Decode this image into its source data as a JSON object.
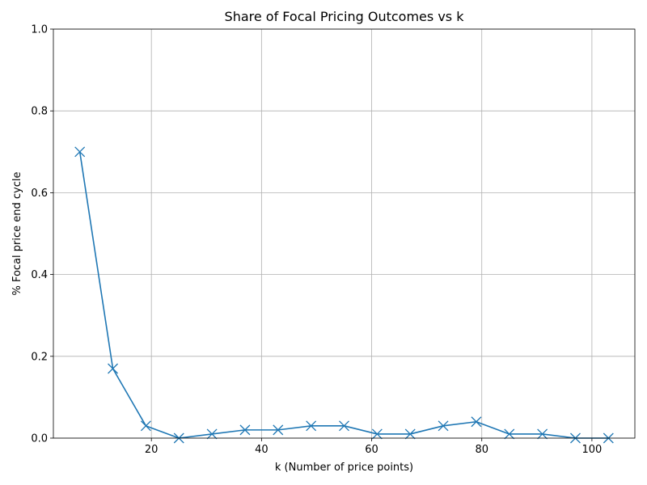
{
  "chart_data": {
    "type": "line",
    "title": "Share of Focal Pricing Outcomes vs k",
    "xlabel": "k (Number of price points)",
    "ylabel": "% Focal price end cycle",
    "xlim": [
      2.2,
      107.8
    ],
    "ylim": [
      0,
      1.0
    ],
    "xticks": [
      20,
      40,
      60,
      80,
      100
    ],
    "yticks": [
      0.0,
      0.2,
      0.4,
      0.6,
      0.8,
      1.0
    ],
    "grid": true,
    "marker": "x",
    "series": [
      {
        "color": "#1f77b4",
        "x": [
          7,
          13,
          19,
          25,
          31,
          37,
          43,
          49,
          55,
          61,
          67,
          73,
          79,
          85,
          91,
          97,
          103
        ],
        "y": [
          0.7,
          0.17,
          0.03,
          0.0,
          0.01,
          0.02,
          0.02,
          0.03,
          0.03,
          0.01,
          0.01,
          0.03,
          0.04,
          0.01,
          0.01,
          0.0,
          0.0
        ]
      }
    ]
  }
}
